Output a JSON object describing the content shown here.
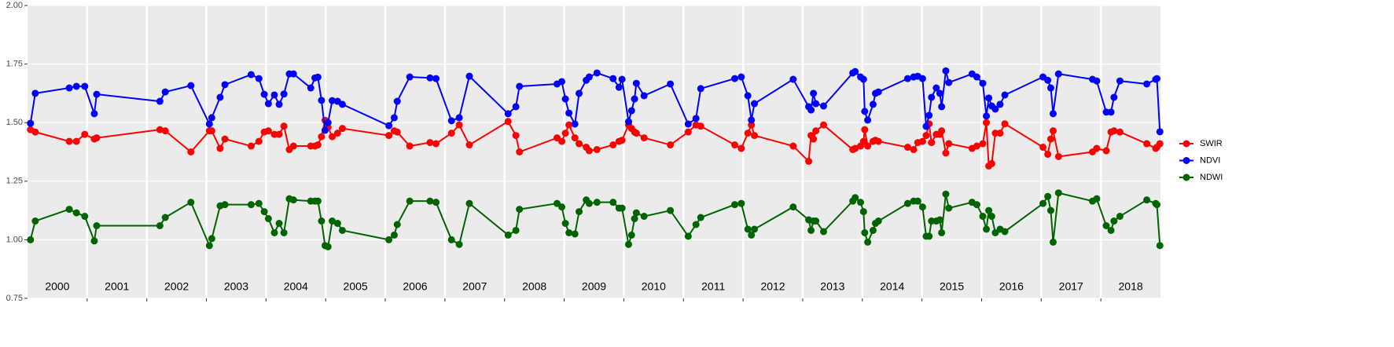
{
  "chart_data": {
    "type": "line",
    "x": [
      2000.05,
      2000.13,
      2000.7,
      2000.82,
      2000.96,
      2001.12,
      2001.16,
      2002.22,
      2002.31,
      2002.74,
      2003.05,
      2003.09,
      2003.23,
      2003.31,
      2003.75,
      2003.88,
      2003.97,
      2004.04,
      2004.14,
      2004.22,
      2004.3,
      2004.39,
      2004.46,
      2004.75,
      2004.82,
      2004.87,
      2004.93,
      2004.99,
      2005.04,
      2005.11,
      2005.2,
      2005.28,
      2006.06,
      2006.15,
      2006.2,
      2006.41,
      2006.75,
      2006.85,
      2007.11,
      2007.24,
      2007.41,
      2008.06,
      2008.19,
      2008.25,
      2008.88,
      2008.96,
      2009.02,
      2009.08,
      2009.18,
      2009.25,
      2009.37,
      2009.42,
      2009.55,
      2009.82,
      2009.92,
      2009.97,
      2010.08,
      2010.13,
      2010.18,
      2010.21,
      2010.34,
      2010.78,
      2011.08,
      2011.21,
      2011.29,
      2011.86,
      2011.97,
      2012.08,
      2012.14,
      2012.19,
      2012.84,
      2013.1,
      2013.14,
      2013.18,
      2013.22,
      2013.35,
      2013.84,
      2013.88,
      2013.97,
      2014.02,
      2014.04,
      2014.09,
      2014.18,
      2014.22,
      2014.27,
      2014.76,
      2014.86,
      2014.93,
      2015.01,
      2015.07,
      2015.12,
      2015.16,
      2015.24,
      2015.3,
      2015.33,
      2015.4,
      2015.45,
      2015.84,
      2015.92,
      2016.02,
      2016.08,
      2016.12,
      2016.17,
      2016.23,
      2016.31,
      2016.39,
      2017.03,
      2017.11,
      2017.16,
      2017.2,
      2017.29,
      2017.86,
      2017.93,
      2018.09,
      2018.17,
      2018.22,
      2018.32,
      2018.77,
      2018.92,
      2018.94,
      2018.99
    ],
    "series": [
      {
        "name": "SWIR",
        "color": "#ff0000",
        "values": [
          1.47,
          1.46,
          1.42,
          1.42,
          1.45,
          1.43,
          1.435,
          1.47,
          1.465,
          1.375,
          1.465,
          1.465,
          1.39,
          1.43,
          1.4,
          1.42,
          1.46,
          1.465,
          1.45,
          1.45,
          1.485,
          1.385,
          1.4,
          1.4,
          1.4,
          1.405,
          1.44,
          1.51,
          1.48,
          1.44,
          1.455,
          1.475,
          1.445,
          1.465,
          1.46,
          1.4,
          1.415,
          1.41,
          1.455,
          1.49,
          1.405,
          1.505,
          1.445,
          1.375,
          1.435,
          1.42,
          1.455,
          1.49,
          1.435,
          1.41,
          1.395,
          1.38,
          1.385,
          1.405,
          1.42,
          1.425,
          1.49,
          1.475,
          1.46,
          1.455,
          1.435,
          1.405,
          1.46,
          1.49,
          1.485,
          1.405,
          1.39,
          1.455,
          1.49,
          1.445,
          1.4,
          1.335,
          1.445,
          1.43,
          1.465,
          1.49,
          1.385,
          1.39,
          1.4,
          1.42,
          1.47,
          1.4,
          1.42,
          1.425,
          1.42,
          1.395,
          1.385,
          1.415,
          1.42,
          1.445,
          1.495,
          1.415,
          1.45,
          1.45,
          1.465,
          1.37,
          1.41,
          1.39,
          1.4,
          1.41,
          1.5,
          1.315,
          1.325,
          1.455,
          1.455,
          1.495,
          1.395,
          1.365,
          1.43,
          1.465,
          1.355,
          1.375,
          1.39,
          1.38,
          1.46,
          1.465,
          1.46,
          1.41,
          1.39,
          1.395,
          1.41
        ]
      },
      {
        "name": "NDVI",
        "color": "#0000ff",
        "values": [
          1.497,
          1.625,
          1.648,
          1.655,
          1.655,
          1.538,
          1.621,
          1.591,
          1.631,
          1.658,
          1.494,
          1.521,
          1.608,
          1.662,
          1.705,
          1.688,
          1.621,
          1.581,
          1.618,
          1.578,
          1.622,
          1.708,
          1.708,
          1.648,
          1.691,
          1.694,
          1.595,
          1.467,
          1.5,
          1.594,
          1.591,
          1.578,
          1.487,
          1.521,
          1.591,
          1.695,
          1.691,
          1.688,
          1.508,
          1.521,
          1.698,
          1.538,
          1.568,
          1.655,
          1.665,
          1.675,
          1.601,
          1.541,
          1.494,
          1.625,
          1.681,
          1.695,
          1.712,
          1.688,
          1.651,
          1.685,
          1.504,
          1.551,
          1.601,
          1.668,
          1.615,
          1.665,
          1.494,
          1.518,
          1.645,
          1.688,
          1.695,
          1.615,
          1.511,
          1.581,
          1.685,
          1.568,
          1.554,
          1.625,
          1.581,
          1.571,
          1.712,
          1.718,
          1.695,
          1.685,
          1.548,
          1.511,
          1.578,
          1.625,
          1.631,
          1.688,
          1.695,
          1.698,
          1.688,
          1.484,
          1.531,
          1.608,
          1.648,
          1.625,
          1.568,
          1.721,
          1.671,
          1.708,
          1.695,
          1.668,
          1.528,
          1.605,
          1.571,
          1.558,
          1.578,
          1.618,
          1.695,
          1.681,
          1.648,
          1.538,
          1.708,
          1.685,
          1.678,
          1.545,
          1.545,
          1.608,
          1.678,
          1.665,
          1.685,
          1.688,
          1.461
        ]
      },
      {
        "name": "NDWI",
        "color": "#006400",
        "values": [
          1.0,
          1.08,
          1.13,
          1.115,
          1.1,
          0.995,
          1.06,
          1.06,
          1.095,
          1.16,
          0.975,
          1.005,
          1.145,
          1.15,
          1.15,
          1.155,
          1.12,
          1.09,
          1.03,
          1.07,
          1.03,
          1.175,
          1.17,
          1.165,
          1.165,
          1.165,
          1.08,
          0.975,
          0.97,
          1.08,
          1.07,
          1.04,
          1.0,
          1.02,
          1.065,
          1.165,
          1.165,
          1.16,
          1.0,
          0.98,
          1.155,
          1.02,
          1.04,
          1.13,
          1.155,
          1.14,
          1.07,
          1.03,
          1.025,
          1.12,
          1.17,
          1.155,
          1.16,
          1.16,
          1.135,
          1.135,
          0.98,
          1.02,
          1.09,
          1.115,
          1.1,
          1.125,
          1.015,
          1.065,
          1.095,
          1.15,
          1.155,
          1.045,
          1.02,
          1.045,
          1.14,
          1.085,
          1.04,
          1.08,
          1.08,
          1.035,
          1.165,
          1.18,
          1.16,
          1.12,
          1.03,
          0.99,
          1.04,
          1.07,
          1.08,
          1.155,
          1.165,
          1.165,
          1.14,
          1.015,
          1.015,
          1.08,
          1.08,
          1.085,
          1.03,
          1.195,
          1.135,
          1.16,
          1.15,
          1.1,
          1.045,
          1.125,
          1.1,
          1.03,
          1.045,
          1.035,
          1.155,
          1.185,
          1.125,
          0.99,
          1.2,
          1.165,
          1.175,
          1.06,
          1.04,
          1.08,
          1.1,
          1.17,
          1.155,
          1.15,
          0.975
        ]
      }
    ],
    "xlim": [
      2000,
      2019
    ],
    "xticks": [
      2001,
      2002,
      2003,
      2004,
      2005,
      2006,
      2007,
      2008,
      2009,
      2010,
      2011,
      2012,
      2013,
      2014,
      2015,
      2016,
      2017,
      2018
    ],
    "year_labels": [
      {
        "value": 2000.5,
        "label": "2000"
      },
      {
        "value": 2001.5,
        "label": "2001"
      },
      {
        "value": 2002.5,
        "label": "2002"
      },
      {
        "value": 2003.5,
        "label": "2003"
      },
      {
        "value": 2004.5,
        "label": "2004"
      },
      {
        "value": 2005.5,
        "label": "2005"
      },
      {
        "value": 2006.5,
        "label": "2006"
      },
      {
        "value": 2007.5,
        "label": "2007"
      },
      {
        "value": 2008.5,
        "label": "2008"
      },
      {
        "value": 2009.5,
        "label": "2009"
      },
      {
        "value": 2010.5,
        "label": "2010"
      },
      {
        "value": 2011.5,
        "label": "2011"
      },
      {
        "value": 2012.5,
        "label": "2012"
      },
      {
        "value": 2013.5,
        "label": "2013"
      },
      {
        "value": 2014.5,
        "label": "2014"
      },
      {
        "value": 2015.5,
        "label": "2015"
      },
      {
        "value": 2016.5,
        "label": "2016"
      },
      {
        "value": 2017.5,
        "label": "2017"
      },
      {
        "value": 2018.5,
        "label": "2018"
      }
    ],
    "ylim": [
      0.75,
      2.0
    ],
    "yticks": [
      0.75,
      {
        "value": 1.0,
        "label": "1.00"
      },
      1.25,
      {
        "value": 1.5,
        "label": "1.50"
      },
      1.75,
      {
        "value": 2.0,
        "label": "2.00"
      }
    ],
    "grid": true
  }
}
